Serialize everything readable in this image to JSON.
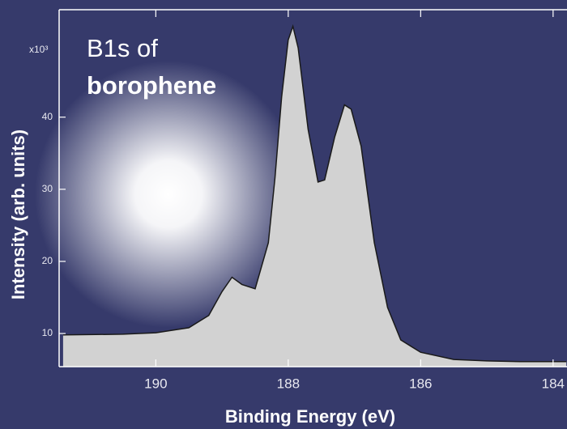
{
  "chart_data": {
    "type": "area",
    "title": "B1s of",
    "subtitle": "borophene",
    "x_label": "Binding Energy (eV)",
    "y_label": "Intensity (arb. units)",
    "y_multiplier": "x10³",
    "x": [
      191.4,
      190.5,
      190.0,
      189.5,
      189.2,
      189.0,
      188.85,
      188.7,
      188.5,
      188.3,
      188.2,
      188.1,
      188.0,
      187.93,
      187.85,
      187.7,
      187.55,
      187.45,
      187.3,
      187.15,
      187.05,
      186.9,
      186.7,
      186.5,
      186.3,
      186.0,
      185.5,
      185.0,
      184.5,
      184.0,
      183.8
    ],
    "values": [
      9.8,
      9.9,
      10.1,
      10.8,
      12.5,
      15.8,
      17.8,
      16.8,
      16.2,
      22.6,
      31.6,
      42.8,
      50.7,
      52.6,
      49.6,
      38.3,
      31.0,
      31.3,
      37.2,
      41.7,
      41.1,
      36.0,
      22.6,
      13.6,
      9.1,
      7.4,
      6.4,
      6.2,
      6.1,
      6.1,
      6.1
    ],
    "color": "#d2d2d2",
    "line_color": "#1a1a1a",
    "xlim": [
      191.46,
      183.79
    ],
    "ylim": [
      5.4,
      54.9
    ],
    "xticks": [
      190,
      188,
      186,
      184
    ],
    "yticks": [
      10,
      20,
      30,
      40
    ]
  }
}
